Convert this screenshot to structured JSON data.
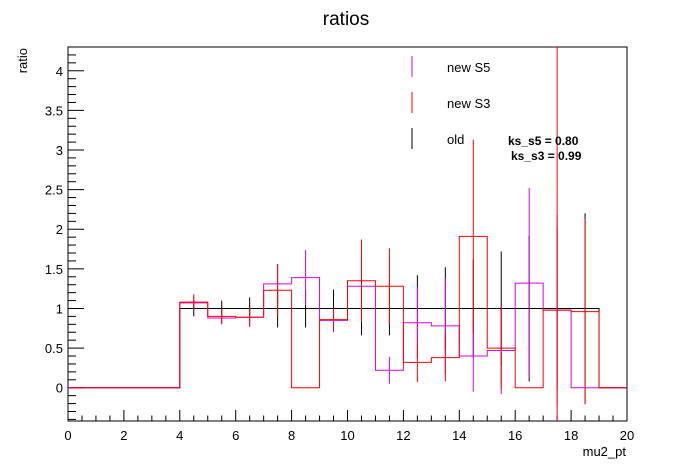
{
  "chart_data": {
    "type": "line",
    "title": "ratios",
    "xlabel": "mu2_pt",
    "ylabel": "ratio",
    "xlim": [
      0,
      20
    ],
    "ylim": [
      -0.42,
      4.3
    ],
    "x_major_ticks": [
      0,
      2,
      4,
      6,
      8,
      10,
      12,
      14,
      16,
      18,
      20
    ],
    "x_tick_labels": [
      "0",
      "2",
      "4",
      "6",
      "8",
      "10",
      "12",
      "14",
      "16",
      "18",
      "20"
    ],
    "y_major_ticks": [
      0,
      0.5,
      1,
      1.5,
      2,
      2.5,
      3,
      3.5,
      4
    ],
    "y_tick_labels": [
      "0",
      "0.5",
      "1",
      "1.5",
      "2",
      "2.5",
      "3",
      "3.5",
      "4"
    ],
    "bin_edges": [
      0,
      4,
      5,
      6,
      7,
      8,
      9,
      10,
      11,
      12,
      13,
      14,
      15,
      16,
      17,
      18,
      19,
      20
    ],
    "grid": false,
    "legend_position": "top-right",
    "legend": [
      "new S5",
      "new S3",
      "old"
    ],
    "annotations": [
      "ks_s5 = 0.80",
      "ks_s3 = 0.99"
    ],
    "series": [
      {
        "name": "new S5",
        "color": "#e000e0",
        "values": [
          0,
          1.07,
          0.88,
          0.89,
          1.31,
          1.39,
          0.85,
          1.28,
          0.22,
          0.82,
          0.78,
          0.4,
          0.47,
          1.32,
          0.98,
          0.0,
          0.0
        ],
        "errors": [
          0,
          0.08,
          0.07,
          0.12,
          0.25,
          0.35,
          0.15,
          0.4,
          0.17,
          0.45,
          0.6,
          0.45,
          0.55,
          1.2,
          1.2,
          0.0,
          0.0
        ]
      },
      {
        "name": "new S3",
        "color": "#ff0000",
        "values": [
          0,
          1.08,
          0.9,
          0.89,
          1.23,
          0.0,
          0.86,
          1.35,
          1.28,
          0.32,
          0.38,
          1.91,
          0.5,
          0.0,
          0.98,
          0.96,
          0.0
        ],
        "errors": [
          0,
          0.1,
          0.1,
          0.12,
          0.33,
          0.0,
          0.12,
          0.52,
          0.48,
          0.25,
          0.3,
          1.22,
          0.52,
          0.0,
          3.5,
          1.17,
          0.0
        ]
      },
      {
        "name": "old",
        "color": "#000000",
        "values": [
          0,
          1.0,
          1.0,
          1.0,
          1.0,
          1.0,
          1.0,
          1.0,
          1.0,
          1.0,
          1.0,
          1.0,
          1.0,
          1.0,
          1.0,
          1.0,
          0.0
        ],
        "errors": [
          0,
          0.1,
          0.1,
          0.14,
          0.24,
          0.24,
          0.24,
          0.34,
          0.34,
          0.42,
          0.52,
          0.62,
          0.72,
          0.92,
          1.02,
          1.2,
          0.0
        ]
      }
    ]
  }
}
